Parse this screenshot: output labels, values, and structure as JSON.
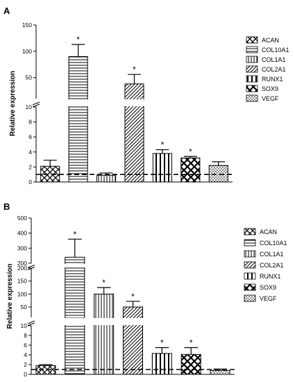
{
  "chart_data": [
    {
      "panel": "A",
      "type": "bar",
      "ylabel": "Relative expression",
      "categories": [
        "ACAN",
        "COL10A1",
        "COL1A1",
        "COL2A1",
        "RUNX1",
        "SOX9",
        "VEGF"
      ],
      "values": [
        2.1,
        90,
        0.9,
        38,
        3.8,
        3.2,
        2.2
      ],
      "errors": [
        0.8,
        23,
        0.3,
        18,
        0.5,
        0.2,
        0.5
      ],
      "significant": [
        false,
        true,
        false,
        true,
        true,
        true,
        false
      ],
      "star_label": "*",
      "reference_line": 1,
      "axis_break": {
        "lower_range": [
          0,
          10
        ],
        "lower_ticks": [
          "0",
          "2",
          "4",
          "6",
          "8",
          "10"
        ],
        "upper_range": [
          10,
          150
        ],
        "upper_ticks": [
          "50",
          "100",
          "150"
        ]
      },
      "legend": [
        "ACAN",
        "COL10A1",
        "COL1A1",
        "COL2A1",
        "RUNX1",
        "SOX9",
        "VEGF"
      ]
    },
    {
      "panel": "B",
      "type": "bar",
      "ylabel": "Relative expression",
      "categories": [
        "ACAN",
        "COL10A1",
        "COL1A1",
        "COL2A1",
        "RUNX1",
        "SOX9",
        "VEGF"
      ],
      "values": [
        1.8,
        240,
        100,
        50,
        4.3,
        4.1,
        0.8
      ],
      "errors": [
        0.2,
        120,
        25,
        22,
        1.2,
        1.4,
        0.3
      ],
      "significant": [
        false,
        true,
        true,
        true,
        true,
        true,
        false
      ],
      "star_label": "*",
      "reference_line": 1,
      "axis_break": {
        "lower_range": [
          0,
          10
        ],
        "lower_ticks": [
          "0",
          "2",
          "4",
          "6",
          "8",
          "10"
        ],
        "middle_range": [
          10,
          200
        ],
        "middle_ticks": [
          "50",
          "100",
          "150",
          "200"
        ],
        "upper_range": [
          200,
          500
        ],
        "upper_ticks": [
          "200",
          "300",
          "400",
          "500"
        ]
      },
      "legend": [
        "ACAN",
        "COL10A1",
        "COL1A1",
        "COL2A1",
        "RUNX1",
        "SOX9",
        "VEGF"
      ]
    }
  ]
}
